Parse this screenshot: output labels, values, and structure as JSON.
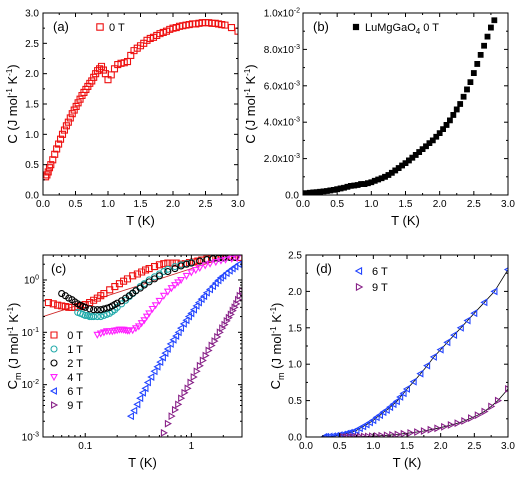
{
  "chart_data": [
    {
      "panel": "(a)",
      "type": "scatter",
      "xlabel": "T (K)",
      "ylabel": "C (J mol-1 K-1)",
      "xlim": [
        0,
        3.0
      ],
      "ylim": [
        0,
        3.0
      ],
      "xticks": [
        "0.0",
        "0.5",
        "1.0",
        "1.5",
        "2.0",
        "2.5",
        "3.0"
      ],
      "yticks": [
        "0.0",
        "0.5",
        "1.0",
        "1.5",
        "2.0",
        "2.5",
        "3.0"
      ],
      "legend_position": "top-left",
      "series": [
        {
          "name": "0 T",
          "color": "#ee1111",
          "marker": "open-square",
          "x": [
            0.04,
            0.06,
            0.08,
            0.1,
            0.12,
            0.15,
            0.18,
            0.21,
            0.24,
            0.27,
            0.3,
            0.33,
            0.36,
            0.39,
            0.42,
            0.45,
            0.48,
            0.51,
            0.54,
            0.57,
            0.6,
            0.63,
            0.66,
            0.69,
            0.72,
            0.75,
            0.78,
            0.81,
            0.84,
            0.87,
            0.9,
            0.93,
            0.96,
            1.0,
            1.05,
            1.1,
            1.15,
            1.2,
            1.25,
            1.3,
            1.35,
            1.4,
            1.45,
            1.5,
            1.55,
            1.6,
            1.65,
            1.7,
            1.75,
            1.8,
            1.85,
            1.9,
            1.95,
            2.0,
            2.05,
            2.1,
            2.15,
            2.2,
            2.25,
            2.3,
            2.35,
            2.4,
            2.45,
            2.5,
            2.55,
            2.6,
            2.65,
            2.7,
            2.75,
            2.8,
            2.9,
            3.0
          ],
          "y": [
            0.3,
            0.33,
            0.38,
            0.45,
            0.5,
            0.58,
            0.67,
            0.76,
            0.84,
            0.92,
            1.0,
            1.07,
            1.14,
            1.2,
            1.27,
            1.34,
            1.4,
            1.46,
            1.52,
            1.58,
            1.64,
            1.69,
            1.74,
            1.79,
            1.84,
            1.88,
            1.94,
            2.0,
            2.05,
            2.08,
            2.12,
            2.06,
            2.0,
            1.9,
            1.98,
            2.08,
            2.15,
            2.17,
            2.18,
            2.2,
            2.3,
            2.38,
            2.42,
            2.46,
            2.5,
            2.55,
            2.58,
            2.6,
            2.63,
            2.66,
            2.68,
            2.7,
            2.73,
            2.75,
            2.76,
            2.78,
            2.79,
            2.8,
            2.81,
            2.82,
            2.82,
            2.83,
            2.84,
            2.84,
            2.84,
            2.83,
            2.83,
            2.82,
            2.81,
            2.8,
            2.76,
            2.7
          ]
        }
      ]
    },
    {
      "panel": "(b)",
      "type": "scatter",
      "xlabel": "T (K)",
      "ylabel": "C (J mol-1 K-1)",
      "xlim": [
        0,
        3.0
      ],
      "ylim": [
        0,
        0.01
      ],
      "xticks": [
        "0.0",
        "0.5",
        "1.0",
        "1.5",
        "2.0",
        "2.5",
        "3.0"
      ],
      "yticks": [
        "0.0",
        "2.0x10-3",
        "4.0x10-3",
        "6.0x10-3",
        "8.0x10-3",
        "1.0x10-2"
      ],
      "legend_position": "top-left",
      "series": [
        {
          "name": "LuMgGaO4 0 T",
          "color": "#000000",
          "marker": "filled-square",
          "x": [
            0.05,
            0.1,
            0.15,
            0.2,
            0.25,
            0.3,
            0.35,
            0.4,
            0.45,
            0.5,
            0.55,
            0.6,
            0.65,
            0.7,
            0.75,
            0.8,
            0.85,
            0.9,
            0.95,
            1.0,
            1.05,
            1.1,
            1.15,
            1.2,
            1.25,
            1.3,
            1.35,
            1.4,
            1.45,
            1.5,
            1.55,
            1.6,
            1.65,
            1.7,
            1.75,
            1.8,
            1.85,
            1.9,
            1.95,
            2.0,
            2.05,
            2.1,
            2.15,
            2.2,
            2.25,
            2.3,
            2.35,
            2.4,
            2.45,
            2.5,
            2.55,
            2.6,
            2.65,
            2.7,
            2.75,
            2.8
          ],
          "y": [
            0.0001,
            0.00012,
            0.00014,
            0.00016,
            0.00018,
            0.0002,
            0.00022,
            0.00025,
            0.00028,
            0.00032,
            0.00036,
            0.0004,
            0.00045,
            0.0005,
            0.00052,
            0.00055,
            0.0006,
            0.0006,
            0.00065,
            0.0007,
            0.00078,
            0.00085,
            0.00092,
            0.001,
            0.0011,
            0.00122,
            0.00135,
            0.00148,
            0.00162,
            0.00175,
            0.0019,
            0.00205,
            0.0022,
            0.00236,
            0.00252,
            0.00268,
            0.00285,
            0.003,
            0.0032,
            0.0034,
            0.00362,
            0.00385,
            0.0041,
            0.0044,
            0.0047,
            0.005,
            0.0054,
            0.0058,
            0.0062,
            0.0067,
            0.0072,
            0.0077,
            0.0082,
            0.0087,
            0.0092,
            0.0096
          ]
        }
      ]
    },
    {
      "panel": "(c)",
      "type": "scatter",
      "xscale": "log",
      "yscale": "log",
      "xlabel": "T (K)",
      "ylabel": "Cm (J mol-1 K-1)",
      "xlim": [
        0.04,
        3.0
      ],
      "ylim": [
        0.001,
        3.0
      ],
      "xticks": [
        "0.1",
        "1"
      ],
      "yticks": [
        "10-3",
        "10-2",
        "10-1",
        "100"
      ],
      "legend_position": "bottom-left",
      "fit_line_color": "#cc2222",
      "series": [
        {
          "name": "0 T",
          "color": "#ee1111",
          "marker": "open-square",
          "x": [
            0.045,
            0.05,
            0.055,
            0.06,
            0.065,
            0.07,
            0.075,
            0.08,
            0.085,
            0.09,
            0.1,
            0.11,
            0.12,
            0.13,
            0.14,
            0.15,
            0.17,
            0.19,
            0.21,
            0.23,
            0.25,
            0.28,
            0.31,
            0.34,
            0.37,
            0.4,
            0.45,
            0.5,
            0.55,
            0.6,
            0.66,
            0.72,
            0.8,
            0.88,
            0.96,
            1.05,
            1.15,
            1.25,
            1.4,
            1.55,
            1.7,
            1.9,
            2.1,
            2.3,
            2.55,
            2.8
          ],
          "y": [
            0.37,
            0.35,
            0.33,
            0.32,
            0.31,
            0.3,
            0.3,
            0.3,
            0.31,
            0.32,
            0.34,
            0.37,
            0.41,
            0.45,
            0.5,
            0.55,
            0.65,
            0.75,
            0.85,
            0.95,
            1.05,
            1.2,
            1.3,
            1.42,
            1.55,
            1.65,
            1.8,
            1.95,
            2.05,
            2.1,
            2.1,
            2.1,
            2.0,
            2.05,
            2.15,
            2.2,
            2.3,
            2.4,
            2.5,
            2.6,
            2.65,
            2.7,
            2.75,
            2.75,
            2.72,
            2.7
          ]
        },
        {
          "name": "1 T",
          "color": "#22aaaa",
          "marker": "open-circle",
          "x": [
            0.085,
            0.09,
            0.095,
            0.1,
            0.105,
            0.11,
            0.115,
            0.12,
            0.13,
            0.14,
            0.15,
            0.16,
            0.17,
            0.18,
            0.19,
            0.2,
            0.22,
            0.24,
            0.26,
            0.28,
            0.3,
            0.33,
            0.36,
            0.4,
            0.45,
            0.5,
            0.55,
            0.6,
            0.7,
            0.8,
            0.9,
            1.0,
            1.2,
            1.4,
            1.6,
            1.8,
            2.0,
            2.3,
            2.6
          ],
          "y": [
            0.24,
            0.23,
            0.22,
            0.21,
            0.21,
            0.2,
            0.2,
            0.2,
            0.2,
            0.2,
            0.21,
            0.22,
            0.23,
            0.25,
            0.27,
            0.3,
            0.35,
            0.41,
            0.48,
            0.55,
            0.63,
            0.75,
            0.85,
            1.0,
            1.15,
            1.3,
            1.45,
            1.6,
            1.8,
            1.95,
            2.05,
            2.15,
            2.3,
            2.45,
            2.55,
            2.6,
            2.65,
            2.7,
            2.7
          ]
        },
        {
          "name": "2 T",
          "color": "#000000",
          "marker": "open-circle",
          "x": [
            0.06,
            0.065,
            0.07,
            0.075,
            0.08,
            0.085,
            0.09,
            0.095,
            0.1,
            0.11,
            0.12,
            0.13,
            0.14,
            0.15,
            0.16,
            0.17,
            0.18,
            0.19,
            0.2,
            0.22,
            0.24,
            0.26,
            0.28,
            0.3,
            0.33,
            0.36,
            0.4,
            0.45,
            0.5,
            0.6,
            0.7,
            0.8,
            0.9,
            1.0,
            1.2,
            1.4,
            1.6,
            1.8,
            2.0,
            2.3,
            2.6
          ],
          "y": [
            0.55,
            0.5,
            0.45,
            0.42,
            0.38,
            0.35,
            0.33,
            0.31,
            0.3,
            0.28,
            0.27,
            0.27,
            0.27,
            0.28,
            0.29,
            0.3,
            0.32,
            0.34,
            0.36,
            0.4,
            0.45,
            0.5,
            0.56,
            0.62,
            0.7,
            0.8,
            0.92,
            1.05,
            1.2,
            1.45,
            1.65,
            1.85,
            2.0,
            2.1,
            2.3,
            2.45,
            2.55,
            2.6,
            2.65,
            2.7,
            2.7
          ]
        },
        {
          "name": "4 T",
          "color": "#ff22ff",
          "marker": "open-triangle-down",
          "x": [
            0.13,
            0.14,
            0.15,
            0.16,
            0.17,
            0.18,
            0.19,
            0.2,
            0.21,
            0.22,
            0.23,
            0.24,
            0.25,
            0.26,
            0.28,
            0.3,
            0.32,
            0.34,
            0.36,
            0.38,
            0.4,
            0.43,
            0.46,
            0.5,
            0.55,
            0.6,
            0.65,
            0.7,
            0.75,
            0.8,
            0.9,
            1.0,
            1.1,
            1.2,
            1.35,
            1.5,
            1.7,
            1.9,
            2.1,
            2.4,
            2.7
          ],
          "y": [
            0.09,
            0.095,
            0.1,
            0.105,
            0.105,
            0.105,
            0.108,
            0.11,
            0.113,
            0.113,
            0.112,
            0.11,
            0.108,
            0.108,
            0.11,
            0.12,
            0.13,
            0.15,
            0.17,
            0.2,
            0.23,
            0.28,
            0.33,
            0.4,
            0.5,
            0.6,
            0.7,
            0.8,
            0.9,
            1.0,
            1.2,
            1.4,
            1.55,
            1.7,
            1.9,
            2.05,
            2.2,
            2.35,
            2.45,
            2.55,
            2.6
          ]
        },
        {
          "name": "6 T",
          "color": "#2244ff",
          "marker": "open-triangle-left",
          "x": [
            0.27,
            0.29,
            0.31,
            0.33,
            0.35,
            0.37,
            0.39,
            0.42,
            0.45,
            0.48,
            0.51,
            0.54,
            0.57,
            0.6,
            0.64,
            0.68,
            0.72,
            0.76,
            0.8,
            0.85,
            0.9,
            0.95,
            1.0,
            1.06,
            1.12,
            1.18,
            1.25,
            1.32,
            1.4,
            1.5,
            1.6,
            1.7,
            1.8,
            1.9,
            2.0,
            2.15,
            2.3,
            2.45,
            2.6,
            2.8
          ],
          "y": [
            0.0025,
            0.0032,
            0.0042,
            0.0055,
            0.007,
            0.0085,
            0.011,
            0.014,
            0.018,
            0.022,
            0.027,
            0.033,
            0.04,
            0.048,
            0.06,
            0.072,
            0.085,
            0.1,
            0.12,
            0.145,
            0.17,
            0.2,
            0.23,
            0.27,
            0.32,
            0.37,
            0.43,
            0.49,
            0.57,
            0.66,
            0.76,
            0.87,
            0.98,
            1.1,
            1.2,
            1.35,
            1.5,
            1.65,
            1.8,
            2.0
          ]
        },
        {
          "name": "9 T",
          "color": "#882288",
          "marker": "open-triangle-right",
          "x": [
            0.55,
            0.6,
            0.65,
            0.7,
            0.75,
            0.8,
            0.86,
            0.92,
            0.98,
            1.05,
            1.12,
            1.2,
            1.28,
            1.36,
            1.45,
            1.55,
            1.65,
            1.75,
            1.85,
            1.95,
            2.05,
            2.15,
            2.25,
            2.35,
            2.45,
            2.55,
            2.65,
            2.75,
            2.85,
            3.0
          ],
          "y": [
            0.0012,
            0.0018,
            0.0025,
            0.0033,
            0.0042,
            0.0055,
            0.007,
            0.0085,
            0.011,
            0.014,
            0.018,
            0.023,
            0.029,
            0.036,
            0.045,
            0.056,
            0.068,
            0.082,
            0.1,
            0.12,
            0.14,
            0.165,
            0.19,
            0.22,
            0.26,
            0.3,
            0.35,
            0.42,
            0.5,
            0.62
          ]
        }
      ]
    },
    {
      "panel": "(d)",
      "type": "scatter",
      "xlabel": "T (K)",
      "ylabel": "Cm (J mol-1 K-1)",
      "xlim": [
        0,
        3.0
      ],
      "ylim": [
        0,
        2.5
      ],
      "xticks": [
        "0.0",
        "0.5",
        "1.0",
        "1.5",
        "2.0",
        "2.5",
        "3.0"
      ],
      "yticks": [
        "0.0",
        "0.5",
        "1.0",
        "1.5",
        "2.0",
        "2.5"
      ],
      "legend_position": "top-left",
      "series": [
        {
          "name": "6 T",
          "color": "#2244ff",
          "marker": "open-triangle-left",
          "x": [
            0.27,
            0.3,
            0.35,
            0.4,
            0.45,
            0.5,
            0.55,
            0.6,
            0.65,
            0.7,
            0.75,
            0.8,
            0.85,
            0.9,
            0.95,
            1.0,
            1.05,
            1.1,
            1.15,
            1.2,
            1.25,
            1.3,
            1.35,
            1.4,
            1.45,
            1.5,
            1.6,
            1.7,
            1.8,
            1.9,
            2.0,
            2.1,
            2.2,
            2.3,
            2.4,
            2.5,
            2.65,
            2.8,
            3.0
          ],
          "y": [
            0.0025,
            0.004,
            0.007,
            0.011,
            0.018,
            0.027,
            0.033,
            0.048,
            0.06,
            0.072,
            0.09,
            0.12,
            0.145,
            0.17,
            0.2,
            0.23,
            0.27,
            0.3,
            0.34,
            0.37,
            0.41,
            0.45,
            0.49,
            0.55,
            0.6,
            0.66,
            0.76,
            0.87,
            0.98,
            1.1,
            1.2,
            1.3,
            1.4,
            1.5,
            1.6,
            1.7,
            1.85,
            2.0,
            2.3
          ]
        },
        {
          "name": "9 T",
          "color": "#882288",
          "marker": "open-triangle-right",
          "x": [
            0.55,
            0.6,
            0.65,
            0.7,
            0.75,
            0.8,
            0.86,
            0.92,
            0.98,
            1.05,
            1.12,
            1.2,
            1.28,
            1.36,
            1.45,
            1.55,
            1.65,
            1.75,
            1.85,
            1.95,
            2.05,
            2.15,
            2.25,
            2.35,
            2.45,
            2.55,
            2.65,
            2.75,
            2.85,
            3.0
          ],
          "y": [
            0.0012,
            0.0018,
            0.0025,
            0.0033,
            0.0042,
            0.0055,
            0.007,
            0.0085,
            0.011,
            0.014,
            0.018,
            0.023,
            0.029,
            0.036,
            0.045,
            0.056,
            0.068,
            0.082,
            0.1,
            0.12,
            0.14,
            0.165,
            0.19,
            0.22,
            0.26,
            0.3,
            0.35,
            0.42,
            0.5,
            0.66
          ]
        }
      ]
    }
  ]
}
